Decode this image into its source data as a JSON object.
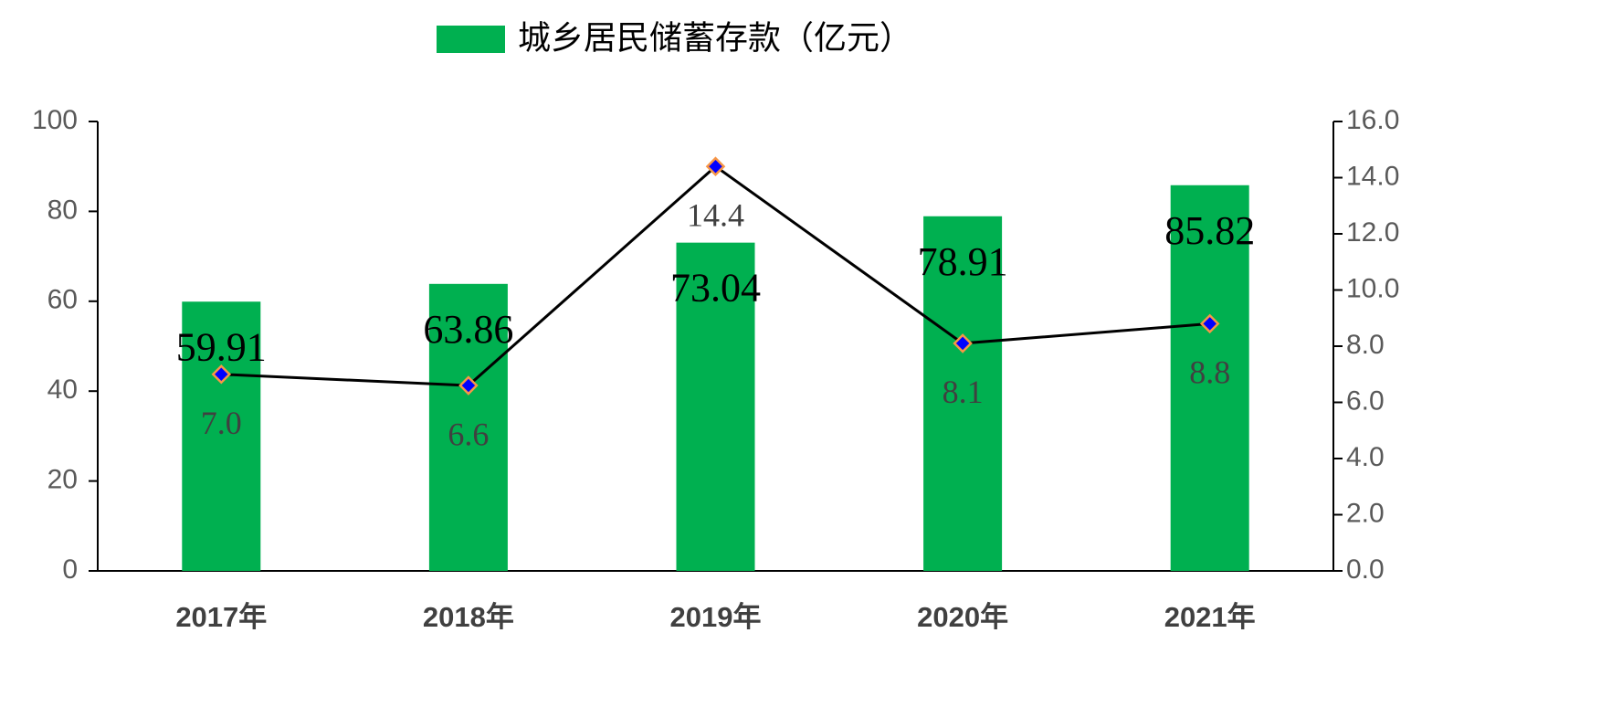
{
  "chart_data": {
    "type": "bar",
    "categories": [
      "2017年",
      "2018年",
      "2019年",
      "2020年",
      "2021年"
    ],
    "series": [
      {
        "name": "城乡居民储蓄存款（亿元）",
        "type": "bar",
        "color": "#00b050",
        "values": [
          59.91,
          63.86,
          73.04,
          78.91,
          85.82
        ]
      },
      {
        "type": "line",
        "axis": "y2",
        "color": "#000000",
        "marker_color": "#0000ff",
        "marker_edge": "#f79646",
        "values": [
          7.0,
          6.6,
          14.4,
          8.1,
          8.8
        ],
        "value_labels": [
          "7.0",
          "6.6",
          "14.4",
          "8.1",
          "8.8"
        ]
      }
    ],
    "ylim": [
      0,
      100
    ],
    "yticks": [
      0,
      20,
      40,
      60,
      80,
      100
    ],
    "y2lim": [
      0,
      16
    ],
    "y2ticks": [
      {
        "value": 0,
        "label": "0.0"
      },
      {
        "value": 2,
        "label": "2.0"
      },
      {
        "value": 4,
        "label": "4.0"
      },
      {
        "value": 6,
        "label": "6.0"
      },
      {
        "value": 8,
        "label": "8.0"
      },
      {
        "value": 10,
        "label": "10.0"
      },
      {
        "value": 12,
        "label": "12.0"
      },
      {
        "value": 14,
        "label": "14.0"
      },
      {
        "value": 16,
        "label": "16.0"
      }
    ],
    "grid": false,
    "legend": "top"
  }
}
